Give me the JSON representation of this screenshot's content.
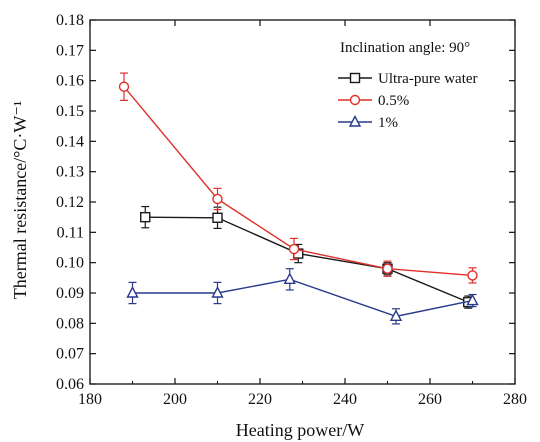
{
  "chart_data": {
    "type": "line",
    "annotation": "Inclination angle: 90°",
    "xlabel": "Heating power/W",
    "ylabel": "Thermal resistance/°C·W⁻¹",
    "xlim": [
      180,
      280
    ],
    "ylim": [
      0.06,
      0.18
    ],
    "x_ticks": [
      180,
      200,
      220,
      240,
      260,
      280
    ],
    "y_ticks": [
      0.06,
      0.07,
      0.08,
      0.09,
      0.1,
      0.11,
      0.12,
      0.13,
      0.14,
      0.15,
      0.16,
      0.17,
      0.18
    ],
    "x_tick_labels": [
      "180",
      "200",
      "220",
      "240",
      "260",
      "280"
    ],
    "y_tick_labels": [
      "0.06",
      "0.07",
      "0.08",
      "0.09",
      "0.10",
      "0.11",
      "0.12",
      "0.13",
      "0.14",
      "0.15",
      "0.16",
      "0.17",
      "0.18"
    ],
    "grid": false,
    "legend_position": "top-right",
    "series": [
      {
        "name": "Ultra-pure water",
        "color": "#1a1a1a",
        "marker": "square",
        "x": [
          193,
          210,
          229,
          250,
          269
        ],
        "y": [
          0.115,
          0.1148,
          0.103,
          0.098,
          0.087
        ],
        "error": [
          0.0035,
          0.0035,
          0.003,
          0.002,
          0.002
        ]
      },
      {
        "name": "0.5%",
        "color": "#e0302a",
        "marker": "circle",
        "x": [
          188,
          210,
          228,
          250,
          270
        ],
        "y": [
          0.158,
          0.121,
          0.1045,
          0.098,
          0.0958
        ],
        "error": [
          0.0045,
          0.0035,
          0.0035,
          0.0025,
          0.0025
        ]
      },
      {
        "name": "1%",
        "color": "#2a3a8c",
        "marker": "triangle",
        "x": [
          190,
          210,
          227,
          252,
          270
        ],
        "y": [
          0.09,
          0.09,
          0.0945,
          0.0823,
          0.0875
        ],
        "error": [
          0.0035,
          0.0035,
          0.0035,
          0.0025,
          0.002
        ]
      }
    ]
  }
}
